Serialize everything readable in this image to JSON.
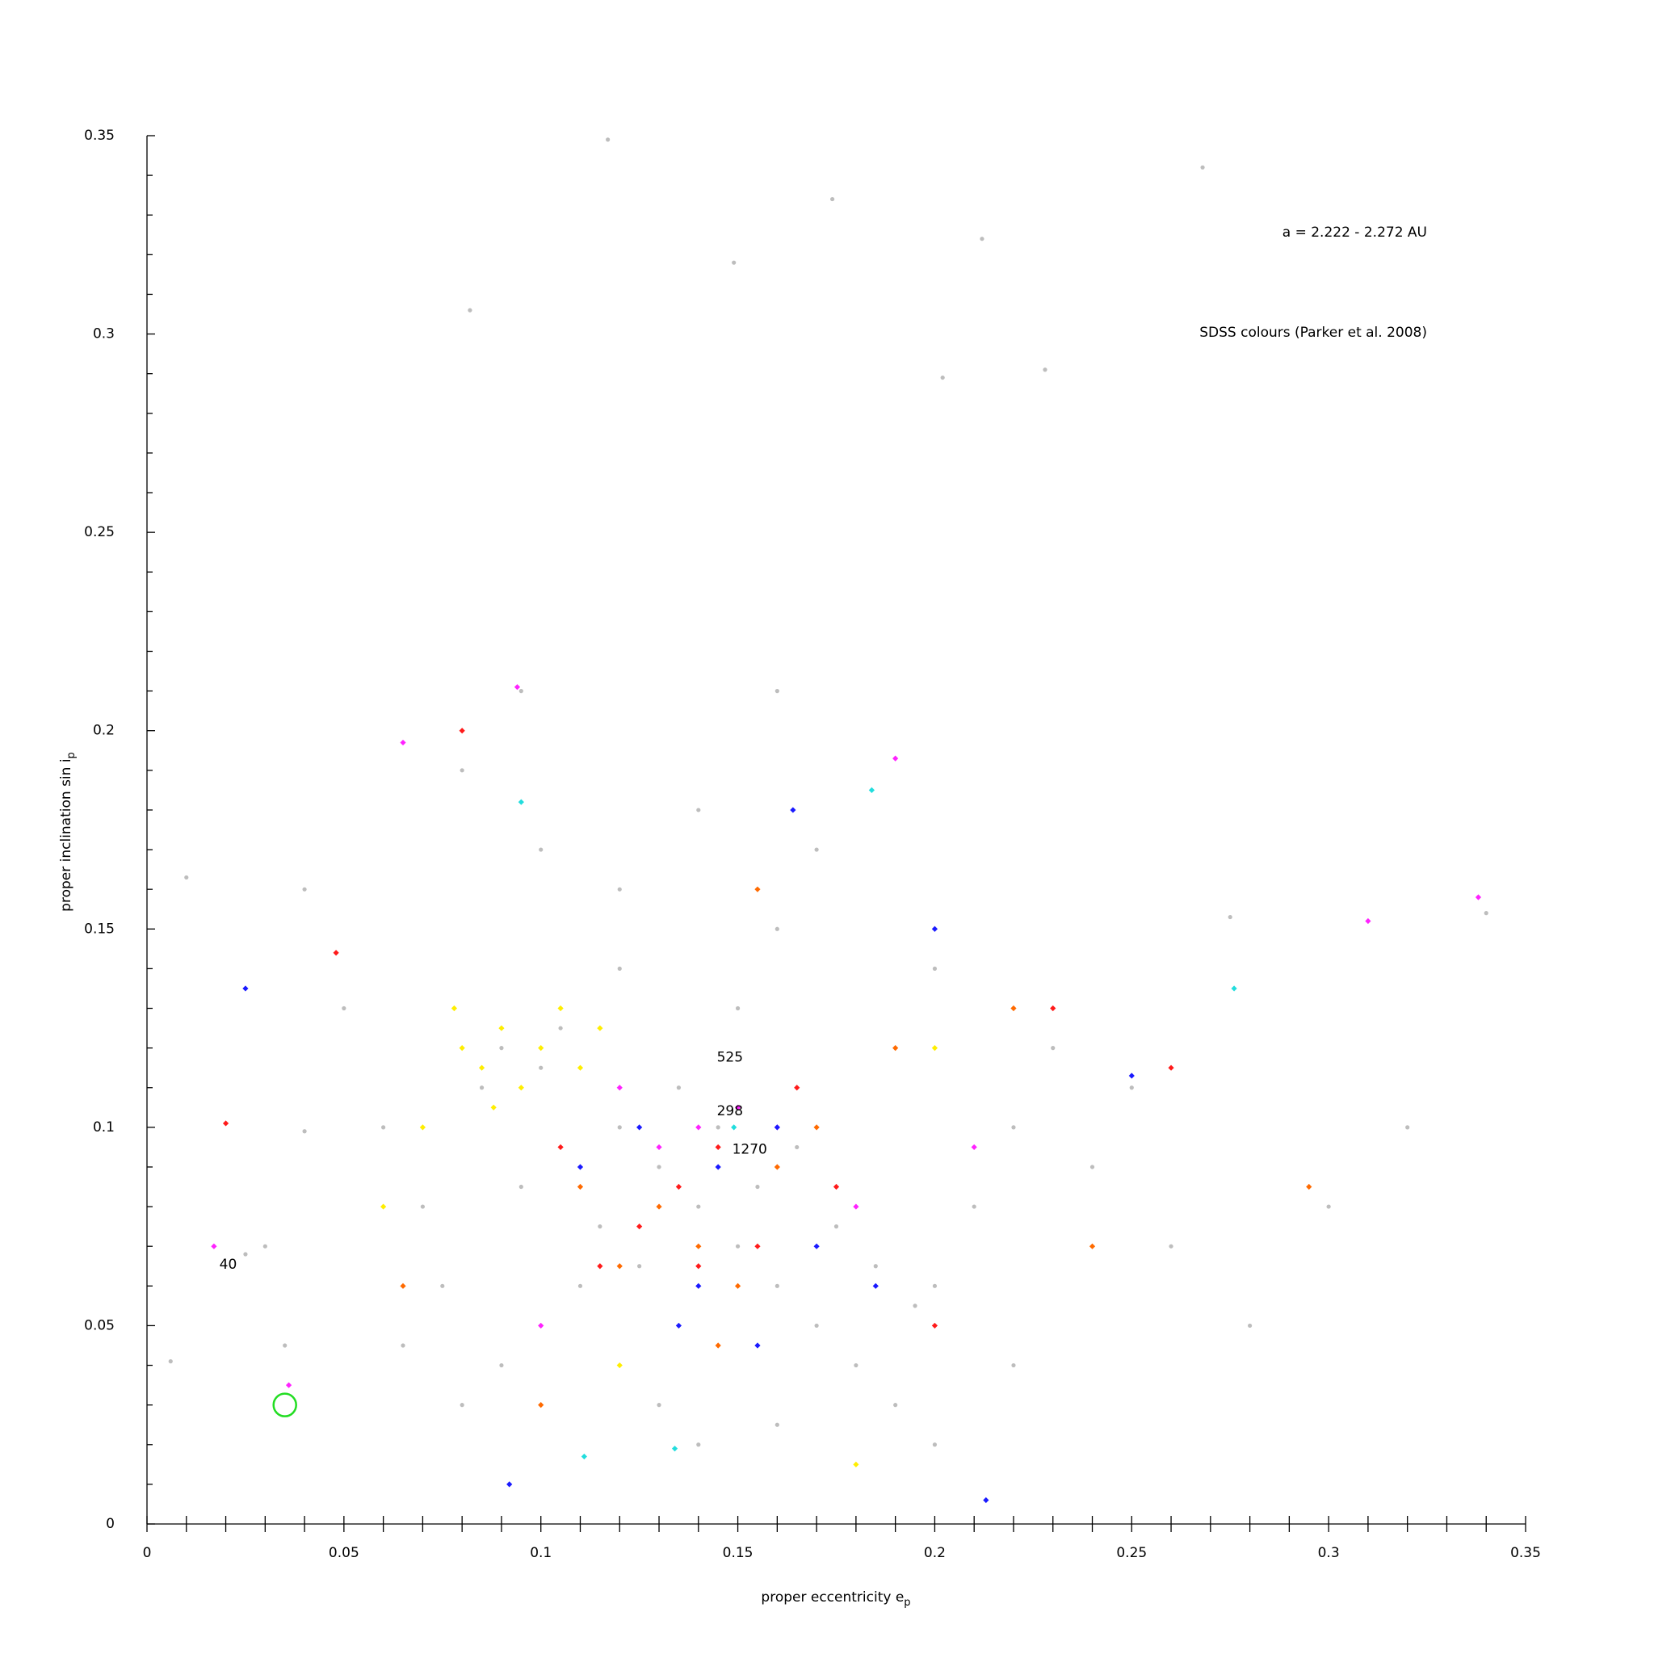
{
  "chart_data": {
    "type": "scatter",
    "xlabel": "proper eccentricity e",
    "xlabel_sub": "p",
    "ylabel": "proper inclination sin i",
    "ylabel_sub": "p",
    "range_note": "a = 2.222 - 2.272 AU",
    "source_note": "SDSS colours (Parker et al. 2008)",
    "xlim": [
      0,
      0.35
    ],
    "ylim": [
      0,
      0.35
    ],
    "xticks": [
      0,
      0.05,
      0.1,
      0.15,
      0.2,
      0.25,
      0.3,
      0.35
    ],
    "yticks": [
      0,
      0.05,
      0.1,
      0.15,
      0.2,
      0.25,
      0.3,
      0.35
    ],
    "xminorticks": [
      0.01,
      0.02,
      0.03,
      0.04,
      0.06,
      0.07,
      0.08,
      0.09,
      0.11,
      0.12,
      0.13,
      0.14,
      0.16,
      0.17,
      0.18,
      0.19,
      0.21,
      0.22,
      0.23,
      0.24,
      0.26,
      0.27,
      0.28,
      0.29,
      0.31,
      0.32,
      0.33,
      0.34
    ],
    "yminorticks": [
      0.01,
      0.02,
      0.03,
      0.04,
      0.06,
      0.07,
      0.08,
      0.09,
      0.11,
      0.12,
      0.13,
      0.14,
      0.16,
      0.17,
      0.18,
      0.19,
      0.21,
      0.22,
      0.23,
      0.24,
      0.26,
      0.27,
      0.28,
      0.29,
      0.31,
      0.32,
      0.33,
      0.34
    ],
    "series": [
      {
        "color": "#bdbdbd",
        "marker": "dot",
        "x": [
          0.09,
          0.1,
          0.105,
          0.085,
          0.12,
          0.13,
          0.14,
          0.15,
          0.16,
          0.17,
          0.18,
          0.19,
          0.2,
          0.21,
          0.22,
          0.23,
          0.11,
          0.1,
          0.09,
          0.08,
          0.07,
          0.06,
          0.05,
          0.04,
          0.03,
          0.025,
          0.15,
          0.16,
          0.17,
          0.14,
          0.12,
          0.1,
          0.08,
          0.2,
          0.24,
          0.26,
          0.28,
          0.3,
          0.32,
          0.34,
          0.275,
          0.25,
          0.13,
          0.14,
          0.16,
          0.12,
          0.135,
          0.145,
          0.155,
          0.165,
          0.175,
          0.185,
          0.195,
          0.115,
          0.125,
          0.095,
          0.075,
          0.065,
          0.2,
          0.22,
          0.117,
          0.174,
          0.212,
          0.082,
          0.149,
          0.228,
          0.268,
          0.202,
          0.095,
          0.16,
          0.006,
          0.01,
          0.035,
          0.04
        ],
        "y": [
          0.12,
          0.115,
          0.125,
          0.11,
          0.1,
          0.09,
          0.08,
          0.07,
          0.06,
          0.05,
          0.04,
          0.03,
          0.06,
          0.08,
          0.1,
          0.12,
          0.06,
          0.05,
          0.04,
          0.03,
          0.08,
          0.1,
          0.13,
          0.16,
          0.07,
          0.068,
          0.13,
          0.15,
          0.17,
          0.18,
          0.16,
          0.17,
          0.19,
          0.14,
          0.09,
          0.07,
          0.05,
          0.08,
          0.1,
          0.154,
          0.153,
          0.11,
          0.03,
          0.02,
          0.025,
          0.14,
          0.11,
          0.1,
          0.085,
          0.095,
          0.075,
          0.065,
          0.055,
          0.075,
          0.065,
          0.085,
          0.06,
          0.045,
          0.02,
          0.04,
          0.349,
          0.334,
          0.324,
          0.306,
          0.318,
          0.291,
          0.342,
          0.289,
          0.21,
          0.21,
          0.041,
          0.163,
          0.045,
          0.099
        ]
      },
      {
        "color": "#ffee00",
        "marker": "diamond",
        "x": [
          0.08,
          0.085,
          0.09,
          0.095,
          0.1,
          0.105,
          0.11,
          0.088,
          0.078,
          0.115,
          0.07,
          0.12,
          0.18,
          0.06,
          0.2
        ],
        "y": [
          0.12,
          0.115,
          0.125,
          0.11,
          0.12,
          0.13,
          0.115,
          0.105,
          0.13,
          0.125,
          0.1,
          0.04,
          0.015,
          0.08,
          0.12
        ]
      },
      {
        "color": "#ff6a00",
        "marker": "diamond",
        "x": [
          0.13,
          0.14,
          0.12,
          0.15,
          0.16,
          0.11,
          0.17,
          0.145,
          0.19,
          0.22,
          0.24,
          0.065,
          0.1,
          0.295,
          0.155
        ],
        "y": [
          0.08,
          0.07,
          0.065,
          0.06,
          0.09,
          0.085,
          0.1,
          0.045,
          0.12,
          0.13,
          0.07,
          0.06,
          0.03,
          0.085,
          0.16
        ]
      },
      {
        "color": "#ff1a1a",
        "marker": "diamond",
        "x": [
          0.135,
          0.125,
          0.145,
          0.155,
          0.115,
          0.165,
          0.105,
          0.175,
          0.14,
          0.2,
          0.08,
          0.048,
          0.02,
          0.26,
          0.23
        ],
        "y": [
          0.085,
          0.075,
          0.095,
          0.07,
          0.065,
          0.11,
          0.095,
          0.085,
          0.065,
          0.05,
          0.2,
          0.144,
          0.101,
          0.115,
          0.13
        ]
      },
      {
        "color": "#ff22ff",
        "marker": "diamond",
        "x": [
          0.14,
          0.15,
          0.13,
          0.16,
          0.12,
          0.19,
          0.094,
          0.065,
          0.31,
          0.036,
          0.18,
          0.1,
          0.017,
          0.338,
          0.21
        ],
        "y": [
          0.1,
          0.105,
          0.095,
          0.1,
          0.11,
          0.193,
          0.211,
          0.197,
          0.152,
          0.035,
          0.08,
          0.05,
          0.07,
          0.158,
          0.095
        ]
      },
      {
        "color": "#1a1aff",
        "marker": "diamond",
        "x": [
          0.145,
          0.135,
          0.155,
          0.14,
          0.17,
          0.16,
          0.125,
          0.185,
          0.11,
          0.2,
          0.164,
          0.025,
          0.213,
          0.092,
          0.25
        ],
        "y": [
          0.09,
          0.05,
          0.045,
          0.06,
          0.07,
          0.1,
          0.1,
          0.06,
          0.09,
          0.15,
          0.18,
          0.135,
          0.006,
          0.01,
          0.113
        ]
      },
      {
        "color": "#22dddd",
        "marker": "diamond",
        "x": [
          0.095,
          0.184,
          0.276,
          0.111,
          0.134,
          0.149
        ],
        "y": [
          0.182,
          0.185,
          0.135,
          0.017,
          0.019,
          0.1
        ]
      }
    ],
    "annotations": [
      {
        "text": "525",
        "x": 0.148,
        "y": 0.1176
      },
      {
        "text": "298",
        "x": 0.148,
        "y": 0.104
      },
      {
        "text": "1270",
        "x": 0.153,
        "y": 0.0944
      },
      {
        "text": "40",
        "x": 0.0206,
        "y": 0.0654
      }
    ],
    "highlight": {
      "x": 0.035,
      "y": 0.03,
      "color": "#22dd22"
    }
  }
}
